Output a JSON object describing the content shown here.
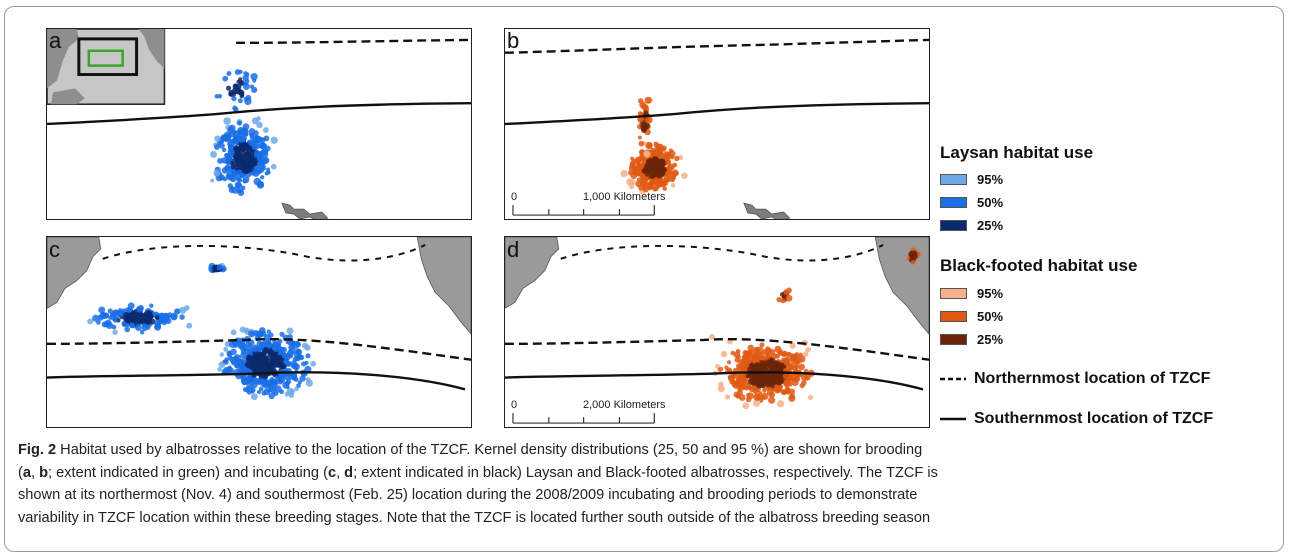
{
  "panels": {
    "a": {
      "label": "a"
    },
    "b": {
      "label": "b",
      "scale_zero": "0",
      "scale_text": "1,000 Kilometers"
    },
    "c": {
      "label": "c"
    },
    "d": {
      "label": "d",
      "scale_zero": "0",
      "scale_text": "2,000 Kilometers"
    }
  },
  "legend": {
    "laysan_title": "Laysan habitat use",
    "laysan_items": [
      {
        "label": "95%",
        "color": "#6fa8e8"
      },
      {
        "label": "50%",
        "color": "#1a6fe6"
      },
      {
        "label": "25%",
        "color": "#0a2a6e"
      }
    ],
    "blackfooted_title": "Black-footed habitat use",
    "blackfooted_items": [
      {
        "label": "95%",
        "color": "#f7b08a"
      },
      {
        "label": "50%",
        "color": "#e05a14"
      },
      {
        "label": "25%",
        "color": "#6b2408"
      }
    ],
    "north_label": "Northernmost location of TZCF",
    "south_label": "Southernmost location of TZCF"
  },
  "caption": {
    "fig_label": "Fig. 2",
    "sentence1": " Habitat used by albatrosses relative to the location of the TZCF. Kernel density distributions (25, 50 and 95 %) are shown for brooding",
    "l2_a": "a",
    "l2_b": "b",
    "l2_mid": "; extent indicated in green) and incubating (",
    "l2_c": "c",
    "l2_d": "d",
    "l2_end": "; extent indicated in black) Laysan and Black-footed albatrosses, respectively. The TZCF is",
    "line3": "shown at its northermost (Nov. 4) and southermost (Feb. 25) location during the 2008/2009 incubating and brooding periods to demonstrate",
    "line4": "variability in TZCF location within these breeding stages. Note that the TZCF is located further south outside of the albatross breeding season"
  },
  "colors": {
    "laysan_light": "#6fa8e8",
    "laysan_mid": "#1a6fe6",
    "laysan_dark": "#0a2a6e",
    "bf_light": "#f7b08a",
    "bf_mid": "#e05a14",
    "bf_dark": "#6b2408",
    "land": "#9a9a9a",
    "inset_box": "#3aa52a"
  }
}
